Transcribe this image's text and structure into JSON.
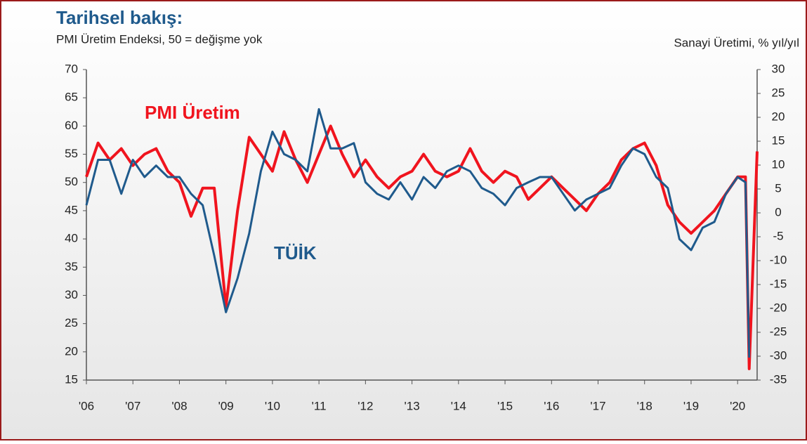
{
  "chart_data": {
    "type": "line",
    "title": "Tarihsel bakış:",
    "subtitle": "PMI Üretim Endeksi, 50 = değişme yok",
    "y2_label": "Sanayi Üretimi, % yıl/yıl",
    "x": [
      2006.0,
      2006.25,
      2006.5,
      2006.75,
      2007.0,
      2007.25,
      2007.5,
      2007.75,
      2008.0,
      2008.25,
      2008.5,
      2008.75,
      2009.0,
      2009.25,
      2009.5,
      2009.75,
      2010.0,
      2010.25,
      2010.5,
      2010.75,
      2011.0,
      2011.25,
      2011.5,
      2011.75,
      2012.0,
      2012.25,
      2012.5,
      2012.75,
      2013.0,
      2013.25,
      2013.5,
      2013.75,
      2014.0,
      2014.25,
      2014.5,
      2014.75,
      2015.0,
      2015.25,
      2015.5,
      2015.75,
      2016.0,
      2016.25,
      2016.5,
      2016.75,
      2017.0,
      2017.25,
      2017.5,
      2017.75,
      2018.0,
      2018.25,
      2018.5,
      2018.75,
      2019.0,
      2019.25,
      2019.5,
      2019.75,
      2020.0,
      2020.17,
      2020.25,
      2020.42
    ],
    "series": [
      {
        "name": "PMI Üretim",
        "color": "#f0141e",
        "axis": "y",
        "values": [
          51,
          57,
          54,
          56,
          53,
          55,
          56,
          52,
          50,
          44,
          49,
          49,
          28,
          45,
          58,
          55,
          52,
          59,
          54,
          50,
          55,
          60,
          55,
          51,
          54,
          51,
          49,
          51,
          52,
          55,
          52,
          51,
          52,
          56,
          52,
          50,
          52,
          51,
          47,
          49,
          51,
          49,
          47,
          45,
          48,
          50,
          54,
          56,
          57,
          53,
          46,
          43,
          41,
          43,
          45,
          48,
          51,
          51,
          17,
          55.5
        ]
      },
      {
        "name": "TÜİK",
        "color": "#1f5a8c",
        "axis": "y2",
        "values": [
          1.6,
          11.1,
          11.1,
          4.0,
          11.1,
          7.5,
          9.9,
          7.5,
          7.5,
          4.0,
          1.6,
          -9.0,
          -20.8,
          -13.7,
          -4.3,
          8.7,
          17.0,
          12.3,
          11.1,
          8.7,
          21.7,
          13.5,
          13.5,
          14.6,
          6.4,
          4.0,
          2.8,
          6.4,
          2.8,
          7.5,
          5.2,
          8.7,
          9.9,
          8.7,
          5.2,
          4.0,
          1.6,
          5.2,
          6.4,
          7.5,
          7.5,
          4.0,
          0.5,
          2.8,
          4.0,
          5.2,
          9.9,
          13.5,
          12.3,
          7.5,
          5.2,
          -5.5,
          -7.8,
          -3.1,
          -1.9,
          4.0,
          7.5,
          6.4,
          -30.3,
          null
        ]
      }
    ],
    "xlim": [
      2006,
      2020.42
    ],
    "xticks": [
      {
        "value": 2006,
        "label": "'06"
      },
      {
        "value": 2007,
        "label": "'07"
      },
      {
        "value": 2008,
        "label": "'08"
      },
      {
        "value": 2009,
        "label": "'09"
      },
      {
        "value": 2010,
        "label": "'10"
      },
      {
        "value": 2011,
        "label": "'11"
      },
      {
        "value": 2012,
        "label": "'12"
      },
      {
        "value": 2013,
        "label": "'13"
      },
      {
        "value": 2014,
        "label": "'14"
      },
      {
        "value": 2015,
        "label": "'15"
      },
      {
        "value": 2016,
        "label": "'16"
      },
      {
        "value": 2017,
        "label": "'17"
      },
      {
        "value": 2018,
        "label": "'18"
      },
      {
        "value": 2019,
        "label": "'19"
      },
      {
        "value": 2020,
        "label": "'20"
      }
    ],
    "ylim": [
      15,
      70
    ],
    "yticks": [
      15,
      20,
      25,
      30,
      35,
      40,
      45,
      50,
      55,
      60,
      65,
      70
    ],
    "y2lim": [
      -35,
      30
    ],
    "y2ticks": [
      -35,
      -30,
      -25,
      -20,
      -15,
      -10,
      -5,
      0,
      5,
      10,
      15,
      20,
      25,
      30
    ],
    "grid": false
  }
}
